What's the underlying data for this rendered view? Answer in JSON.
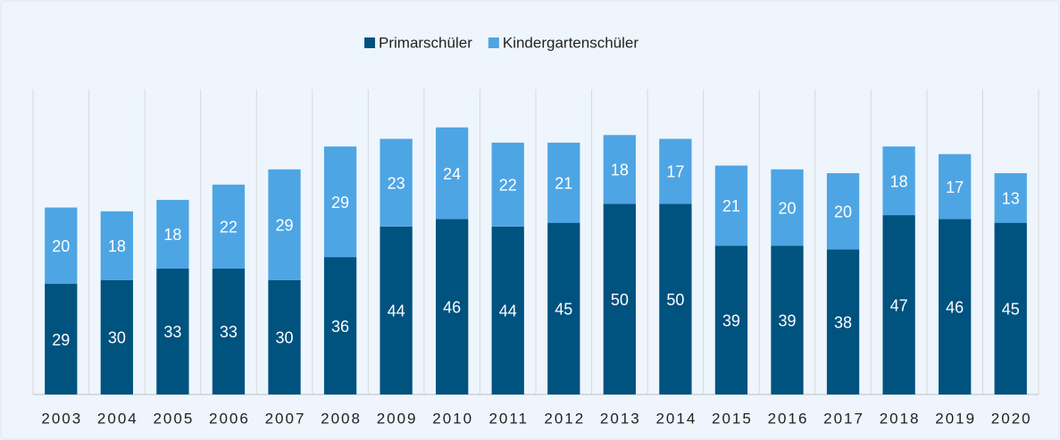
{
  "chart_data": {
    "type": "stacked_bar",
    "categories": [
      "2003",
      "2004",
      "2005",
      "2006",
      "2007",
      "2008",
      "2009",
      "2010",
      "2011",
      "2012",
      "2013",
      "2014",
      "2015",
      "2016",
      "2017",
      "2018",
      "2019",
      "2020"
    ],
    "series": [
      {
        "name": "Primarschüler",
        "color": "#00527f",
        "values": [
          29,
          30,
          33,
          33,
          30,
          36,
          44,
          46,
          44,
          45,
          50,
          50,
          39,
          39,
          38,
          47,
          46,
          45
        ]
      },
      {
        "name": "Kindergartenschüler",
        "color": "#4ea5e4",
        "values": [
          20,
          18,
          18,
          22,
          29,
          29,
          23,
          24,
          22,
          21,
          18,
          17,
          21,
          20,
          20,
          18,
          17,
          13
        ]
      }
    ],
    "ylim": [
      0,
      80
    ],
    "grid": true,
    "legend": "top"
  }
}
